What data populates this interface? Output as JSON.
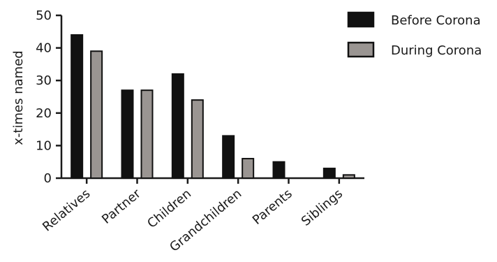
{
  "chart_data": {
    "type": "bar",
    "categories": [
      "Relatives",
      "Partner",
      "Children",
      "Grandchildren",
      "Parents",
      "Siblings"
    ],
    "series": [
      {
        "name": "Before Corona",
        "values": [
          44,
          27,
          32,
          13,
          5,
          3
        ],
        "color": "#111111"
      },
      {
        "name": "During Corona",
        "values": [
          39,
          27,
          24,
          6,
          0,
          1
        ],
        "color": "#9a9592"
      }
    ],
    "ylabel": "x-times named",
    "xlabel": "",
    "ylim": [
      0,
      50
    ],
    "yticks": [
      0,
      10,
      20,
      30,
      40,
      50
    ],
    "grid": false,
    "legend_position": "top-right"
  }
}
